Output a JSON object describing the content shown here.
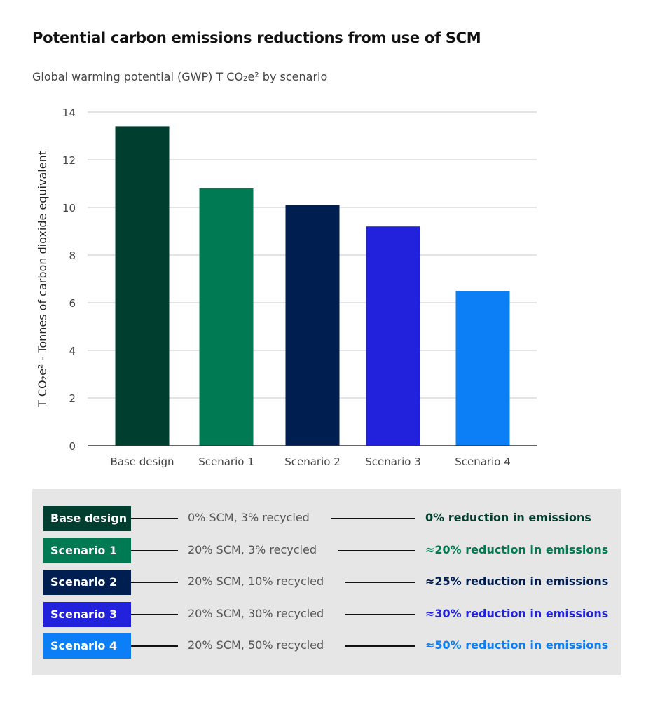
{
  "chart_data": {
    "type": "bar",
    "title": "Potential carbon emissions reductions from use of SCM",
    "subtitle": "Global warming potential (GWP) T CO₂e² by scenario",
    "ylabel": "T CO₂e² - Tonnes of carbon dioxide equivalent",
    "xlabel": "",
    "categories": [
      "Base design",
      "Scenario 1",
      "Scenario 2",
      "Scenario 3",
      "Scenario 4"
    ],
    "values": [
      13.4,
      10.8,
      10.1,
      9.2,
      6.5
    ],
    "colors": [
      "#003e2f",
      "#007a53",
      "#001e50",
      "#2222dd",
      "#0c7ff6"
    ],
    "ylim": [
      0,
      14
    ],
    "yticks": [
      0,
      2,
      4,
      6,
      8,
      10,
      12,
      14
    ],
    "grid": true
  },
  "legend": [
    {
      "label": "Base design",
      "desc": "0% SCM, 3% recycled",
      "reduction": "0% reduction in emissions",
      "color": "#003e2f"
    },
    {
      "label": "Scenario 1",
      "desc": "20% SCM, 3% recycled",
      "reduction": "≈20% reduction in emissions",
      "color": "#007a53"
    },
    {
      "label": "Scenario 2",
      "desc": "20% SCM, 10% recycled",
      "reduction": "≈25% reduction in emissions",
      "color": "#001e50"
    },
    {
      "label": "Scenario 3",
      "desc": "20% SCM, 30% recycled",
      "reduction": "≈30% reduction in emissions",
      "color": "#2222dd"
    },
    {
      "label": "Scenario 4",
      "desc": "20% SCM, 50% recycled",
      "reduction": "≈50% reduction in emissions",
      "color": "#0c7ff6"
    }
  ]
}
